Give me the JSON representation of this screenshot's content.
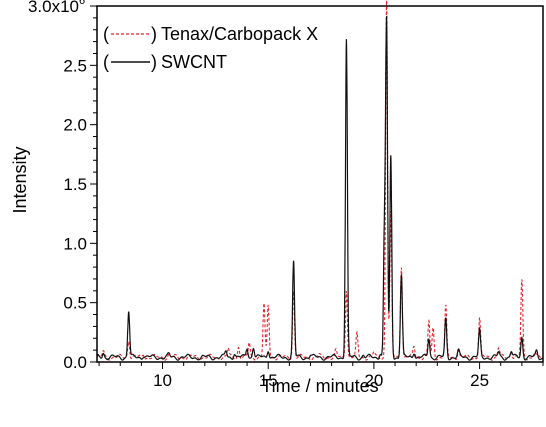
{
  "chart_data": {
    "type": "line",
    "title": "",
    "xlabel": "Time / minutes",
    "ylabel": "Intensity",
    "xlim": [
      6.9,
      28.0
    ],
    "ylim": [
      0,
      3000000.0
    ],
    "x_ticks": [
      {
        "value": 10,
        "label": "10"
      },
      {
        "value": 15,
        "label": "15"
      },
      {
        "value": 20,
        "label": "20"
      },
      {
        "value": 25,
        "label": "25"
      }
    ],
    "y_ticks": [
      {
        "value": 0,
        "label": "0.0"
      },
      {
        "value": 500000,
        "label": "0.5"
      },
      {
        "value": 1000000,
        "label": "1.0"
      },
      {
        "value": 1500000,
        "label": "1.5"
      },
      {
        "value": 2000000,
        "label": "2.0"
      },
      {
        "value": 2500000,
        "label": "2.5"
      },
      {
        "value": 3000000,
        "label": "3.0x10"
      }
    ],
    "y_top_exponent": "6",
    "grid": false,
    "legend_position": "top-left",
    "series": [
      {
        "name": "Tenax/Carbopack X",
        "legend_label": "(- - - - -) Tenax/Carbopack X",
        "color": "#e8232a",
        "style": "dashed",
        "baseline": 40000,
        "peaks": [
          [
            7.2,
            90000
          ],
          [
            8.4,
            190000
          ],
          [
            9.1,
            70000
          ],
          [
            10.3,
            60000
          ],
          [
            11.8,
            40000
          ],
          [
            13.1,
            110000
          ],
          [
            13.6,
            130000
          ],
          [
            14.1,
            160000
          ],
          [
            14.8,
            480000
          ],
          [
            15.0,
            480000
          ],
          [
            16.2,
            600000
          ],
          [
            17.4,
            60000
          ],
          [
            18.2,
            90000
          ],
          [
            18.7,
            620000
          ],
          [
            19.2,
            230000
          ],
          [
            20.0,
            80000
          ],
          [
            20.6,
            3080000
          ],
          [
            20.8,
            1250000
          ],
          [
            21.3,
            820000
          ],
          [
            21.9,
            130000
          ],
          [
            22.6,
            340000
          ],
          [
            22.8,
            280000
          ],
          [
            23.4,
            460000
          ],
          [
            24.0,
            110000
          ],
          [
            25.0,
            370000
          ],
          [
            25.9,
            120000
          ],
          [
            26.5,
            100000
          ],
          [
            27.0,
            680000
          ],
          [
            27.6,
            80000
          ]
        ]
      },
      {
        "name": "SWCNT",
        "legend_label": "(———) SWCNT",
        "color": "#111111",
        "style": "solid",
        "baseline": 40000,
        "peaks": [
          [
            7.2,
            80000
          ],
          [
            8.4,
            430000
          ],
          [
            9.1,
            60000
          ],
          [
            10.3,
            60000
          ],
          [
            11.8,
            30000
          ],
          [
            13.0,
            90000
          ],
          [
            13.4,
            80000
          ],
          [
            14.0,
            120000
          ],
          [
            14.3,
            130000
          ],
          [
            15.0,
            110000
          ],
          [
            16.2,
            840000
          ],
          [
            17.0,
            60000
          ],
          [
            18.7,
            2720000
          ],
          [
            19.5,
            60000
          ],
          [
            20.3,
            80000
          ],
          [
            20.5,
            1070000
          ],
          [
            20.6,
            2820000
          ],
          [
            20.8,
            1730000
          ],
          [
            21.3,
            740000
          ],
          [
            21.9,
            90000
          ],
          [
            22.6,
            200000
          ],
          [
            23.4,
            360000
          ],
          [
            24.0,
            90000
          ],
          [
            25.0,
            260000
          ],
          [
            25.9,
            80000
          ],
          [
            26.5,
            90000
          ],
          [
            27.0,
            210000
          ],
          [
            27.7,
            90000
          ]
        ]
      }
    ]
  }
}
